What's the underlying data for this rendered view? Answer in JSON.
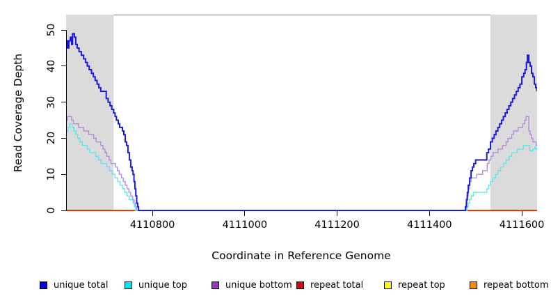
{
  "chart_data": {
    "type": "line",
    "title": "",
    "xlabel": "Coordinate in Reference Genome",
    "ylabel": "Read Coverage Depth",
    "xlim": [
      4110613,
      4111633
    ],
    "ylim": [
      0,
      54.2
    ],
    "x_ticks": [
      4110800,
      4111000,
      4111200,
      4111400,
      4111600
    ],
    "y_ticks": [
      0,
      10,
      20,
      30,
      40,
      50
    ],
    "grid": false,
    "legend_position": "bottom",
    "frame_color": "#7A7A7A",
    "shade_color": "#DBDBDB",
    "shaded_regions": [
      {
        "x0": 4110613,
        "x1": 4110716
      },
      {
        "x0": 4111532,
        "x1": 4111633
      }
    ],
    "series": [
      {
        "name": "unique total",
        "legend_color": "#0000EE",
        "line_color": "#1A1ADF",
        "line_width": 2,
        "points": [
          [
            4110613,
            47
          ],
          [
            4110616,
            45
          ],
          [
            4110619,
            47
          ],
          [
            4110622,
            48
          ],
          [
            4110625,
            46
          ],
          [
            4110627,
            49
          ],
          [
            4110631,
            48
          ],
          [
            4110634,
            46
          ],
          [
            4110637,
            45
          ],
          [
            4110641,
            44
          ],
          [
            4110646,
            43
          ],
          [
            4110651,
            42
          ],
          [
            4110655,
            41
          ],
          [
            4110659,
            40
          ],
          [
            4110663,
            39
          ],
          [
            4110668,
            38
          ],
          [
            4110672,
            37
          ],
          [
            4110676,
            36
          ],
          [
            4110680,
            35
          ],
          [
            4110684,
            34
          ],
          [
            4110688,
            33
          ],
          [
            4110696,
            33
          ],
          [
            4110700,
            31
          ],
          [
            4110704,
            30
          ],
          [
            4110708,
            29
          ],
          [
            4110712,
            28
          ],
          [
            4110716,
            27
          ],
          [
            4110719,
            26
          ],
          [
            4110722,
            25
          ],
          [
            4110726,
            24
          ],
          [
            4110729,
            23
          ],
          [
            4110735,
            22
          ],
          [
            4110738,
            21
          ],
          [
            4110741,
            19
          ],
          [
            4110744,
            18
          ],
          [
            4110747,
            16
          ],
          [
            4110750,
            14
          ],
          [
            4110753,
            12
          ],
          [
            4110756,
            11
          ],
          [
            4110758,
            10
          ],
          [
            4110760,
            8
          ],
          [
            4110762,
            6
          ],
          [
            4110764,
            4
          ],
          [
            4110766,
            2
          ],
          [
            4110768,
            1
          ],
          [
            4110770,
            0
          ],
          [
            4111476,
            0
          ],
          [
            4111478,
            1
          ],
          [
            4111480,
            3
          ],
          [
            4111482,
            5
          ],
          [
            4111484,
            7
          ],
          [
            4111487,
            9
          ],
          [
            4111490,
            11
          ],
          [
            4111493,
            12
          ],
          [
            4111496,
            13
          ],
          [
            4111500,
            14
          ],
          [
            4111520,
            14
          ],
          [
            4111524,
            16
          ],
          [
            4111528,
            17
          ],
          [
            4111532,
            19
          ],
          [
            4111536,
            20
          ],
          [
            4111540,
            21
          ],
          [
            4111544,
            22
          ],
          [
            4111548,
            23
          ],
          [
            4111552,
            24
          ],
          [
            4111556,
            25
          ],
          [
            4111560,
            26
          ],
          [
            4111564,
            27
          ],
          [
            4111568,
            28
          ],
          [
            4111572,
            29
          ],
          [
            4111576,
            30
          ],
          [
            4111580,
            31
          ],
          [
            4111584,
            32
          ],
          [
            4111588,
            33
          ],
          [
            4111592,
            34
          ],
          [
            4111596,
            35
          ],
          [
            4111600,
            37
          ],
          [
            4111604,
            38
          ],
          [
            4111607,
            39
          ],
          [
            4111610,
            41
          ],
          [
            4111612,
            43
          ],
          [
            4111615,
            41
          ],
          [
            4111618,
            40
          ],
          [
            4111621,
            38
          ],
          [
            4111624,
            37
          ],
          [
            4111627,
            35
          ],
          [
            4111630,
            34
          ],
          [
            4111633,
            33
          ]
        ]
      },
      {
        "name": "unique top",
        "legend_color": "#00E6F0",
        "line_color": "#5CE6EF",
        "line_width": 1.4,
        "points": [
          [
            4110613,
            22
          ],
          [
            4110617,
            23
          ],
          [
            4110621,
            24
          ],
          [
            4110626,
            23
          ],
          [
            4110630,
            22
          ],
          [
            4110634,
            21
          ],
          [
            4110638,
            20
          ],
          [
            4110643,
            19
          ],
          [
            4110648,
            18
          ],
          [
            4110655,
            18
          ],
          [
            4110659,
            17
          ],
          [
            4110664,
            16
          ],
          [
            4110671,
            16
          ],
          [
            4110677,
            15
          ],
          [
            4110683,
            14
          ],
          [
            4110689,
            13
          ],
          [
            4110695,
            13
          ],
          [
            4110701,
            12
          ],
          [
            4110707,
            11
          ],
          [
            4110713,
            10
          ],
          [
            4110719,
            9
          ],
          [
            4110725,
            8
          ],
          [
            4110730,
            7
          ],
          [
            4110735,
            6
          ],
          [
            4110740,
            5
          ],
          [
            4110745,
            4
          ],
          [
            4110750,
            3
          ],
          [
            4110755,
            3
          ],
          [
            4110758,
            2
          ],
          [
            4110761,
            1
          ],
          [
            4110763,
            0
          ],
          [
            4111478,
            0
          ],
          [
            4111481,
            1
          ],
          [
            4111484,
            2
          ],
          [
            4111487,
            3
          ],
          [
            4111490,
            4
          ],
          [
            4111495,
            5
          ],
          [
            4111520,
            5
          ],
          [
            4111524,
            6
          ],
          [
            4111528,
            7
          ],
          [
            4111532,
            8
          ],
          [
            4111537,
            9
          ],
          [
            4111543,
            10
          ],
          [
            4111548,
            11
          ],
          [
            4111554,
            12
          ],
          [
            4111560,
            13
          ],
          [
            4111566,
            14
          ],
          [
            4111572,
            15
          ],
          [
            4111578,
            16
          ],
          [
            4111585,
            16
          ],
          [
            4111590,
            17
          ],
          [
            4111598,
            17
          ],
          [
            4111603,
            18
          ],
          [
            4111613,
            18
          ],
          [
            4111617,
            16.5
          ],
          [
            4111624,
            17
          ],
          [
            4111628,
            17.5
          ],
          [
            4111631,
            17
          ],
          [
            4111633,
            17
          ]
        ]
      },
      {
        "name": "unique bottom",
        "legend_color": "#9932CC",
        "line_color": "#B38BDF",
        "line_width": 1.4,
        "points": [
          [
            4110613,
            25
          ],
          [
            4110616,
            26
          ],
          [
            4110621,
            26
          ],
          [
            4110625,
            25
          ],
          [
            4110629,
            24
          ],
          [
            4110635,
            24
          ],
          [
            4110640,
            23
          ],
          [
            4110646,
            23
          ],
          [
            4110651,
            22
          ],
          [
            4110657,
            22
          ],
          [
            4110662,
            21
          ],
          [
            4110668,
            21
          ],
          [
            4110673,
            20
          ],
          [
            4110678,
            19
          ],
          [
            4110684,
            19
          ],
          [
            4110688,
            18
          ],
          [
            4110693,
            17
          ],
          [
            4110697,
            16
          ],
          [
            4110701,
            15
          ],
          [
            4110706,
            14
          ],
          [
            4110710,
            13
          ],
          [
            4110716,
            13
          ],
          [
            4110720,
            12
          ],
          [
            4110724,
            11
          ],
          [
            4110728,
            10
          ],
          [
            4110733,
            9
          ],
          [
            4110737,
            8
          ],
          [
            4110741,
            7
          ],
          [
            4110745,
            6
          ],
          [
            4110749,
            5
          ],
          [
            4110753,
            4
          ],
          [
            4110757,
            3
          ],
          [
            4110760,
            2
          ],
          [
            4110763,
            1
          ],
          [
            4110766,
            0
          ],
          [
            4111477,
            0
          ],
          [
            4111479,
            2
          ],
          [
            4111481,
            4
          ],
          [
            4111484,
            6
          ],
          [
            4111487,
            8
          ],
          [
            4111490,
            9
          ],
          [
            4111497,
            9
          ],
          [
            4111502,
            10
          ],
          [
            4111510,
            10
          ],
          [
            4111515,
            11
          ],
          [
            4111521,
            11
          ],
          [
            4111525,
            13
          ],
          [
            4111529,
            14
          ],
          [
            4111533,
            15
          ],
          [
            4111538,
            16
          ],
          [
            4111544,
            16
          ],
          [
            4111548,
            17
          ],
          [
            4111554,
            17
          ],
          [
            4111558,
            18
          ],
          [
            4111563,
            18
          ],
          [
            4111566,
            19
          ],
          [
            4111570,
            20
          ],
          [
            4111575,
            20
          ],
          [
            4111578,
            21
          ],
          [
            4111582,
            22
          ],
          [
            4111588,
            22
          ],
          [
            4111592,
            23
          ],
          [
            4111598,
            23
          ],
          [
            4111602,
            24
          ],
          [
            4111606,
            25
          ],
          [
            4111609,
            26
          ],
          [
            4111613,
            26
          ],
          [
            4111615,
            22
          ],
          [
            4111618,
            21
          ],
          [
            4111621,
            20
          ],
          [
            4111624,
            19
          ],
          [
            4111629,
            19
          ],
          [
            4111631,
            18
          ],
          [
            4111633,
            18
          ]
        ]
      },
      {
        "name": "repeat total",
        "legend_color": "#E10000",
        "line_color": "#E10000",
        "line_width": 1.4,
        "points": [
          [
            4110613,
            0
          ],
          [
            4111633,
            0
          ]
        ]
      },
      {
        "name": "repeat top",
        "legend_color": "#FFFF00",
        "line_color": "#FFFF00",
        "line_width": 1.4,
        "points": [
          [
            4110613,
            0
          ],
          [
            4111633,
            0
          ]
        ]
      },
      {
        "name": "repeat bottom",
        "legend_color": "#FF8C00",
        "line_color": "#FF8C00",
        "line_width": 1.8,
        "points": [
          [
            4110613,
            0
          ],
          [
            4111633,
            0
          ]
        ]
      }
    ]
  }
}
